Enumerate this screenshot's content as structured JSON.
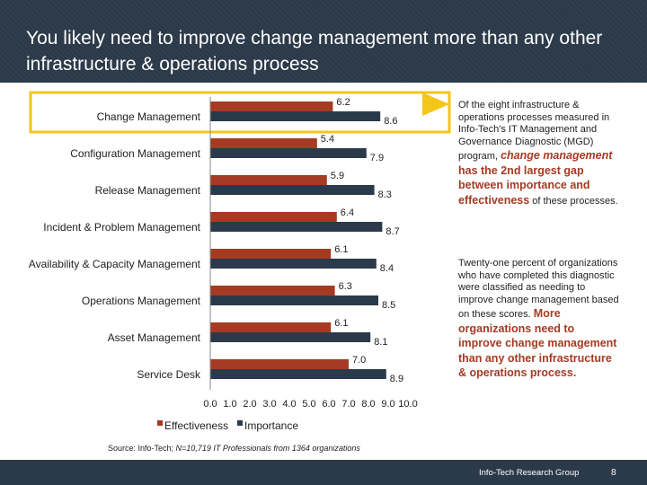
{
  "header": {
    "title": "You likely need to improve change management more than any other infrastructure & operations process"
  },
  "chart_data": {
    "type": "bar",
    "orientation": "horizontal",
    "categories": [
      "Change Management",
      "Configuration Management",
      "Release Management",
      "Incident & Problem Management",
      "Availability & Capacity Management",
      "Operations Management",
      "Asset Management",
      "Service Desk"
    ],
    "series": [
      {
        "name": "Effectiveness",
        "values": [
          6.2,
          5.4,
          5.9,
          6.4,
          6.1,
          6.3,
          6.1,
          7.0
        ],
        "color": "#a63a22"
      },
      {
        "name": "Importance",
        "values": [
          8.6,
          7.9,
          8.3,
          8.7,
          8.4,
          8.5,
          8.1,
          8.9
        ],
        "color": "#2b3a4a"
      }
    ],
    "value_labels": {
      "Effectiveness": [
        "6.2",
        "5.4",
        "5.9",
        "6.4",
        "6.1",
        "6.3",
        "6.1",
        "7.0"
      ],
      "Importance": [
        "8.6",
        "7.9",
        "8.3",
        "8.7",
        "8.4",
        "8.5",
        "8.1",
        "8.9"
      ]
    },
    "xlim": [
      0,
      10
    ],
    "x_ticks": [
      "0.0",
      "1.0",
      "2.0",
      "3.0",
      "4.0",
      "5.0",
      "6.0",
      "7.0",
      "8.0",
      "9.0",
      "10.0"
    ],
    "legend_position": "bottom",
    "highlighted_category": "Change Management",
    "highlight_color": "#f5c518"
  },
  "sidebar": {
    "para1_before": "Of the eight infrastructure & operations processes measured in Info-Tech's IT Management and Governance Diagnostic (MGD) program, ",
    "para1_em_italic": "change management",
    "para1_em_rest": " has the 2nd largest gap between importance and effectiveness",
    "para1_after": " of these processes.",
    "para2_before": "Twenty-one percent of organizations who have completed this diagnostic were classified as needing to improve change management based on these scores. ",
    "para2_em": "More organizations need to improve change management than any other infrastructure & operations process."
  },
  "source": {
    "prefix": "Source: Info-Tech; ",
    "italic": "N",
    "suffix": "=10,719 IT Professionals from  1364 organizations"
  },
  "footer": {
    "org": "Info-Tech Research Group",
    "page": "8"
  }
}
